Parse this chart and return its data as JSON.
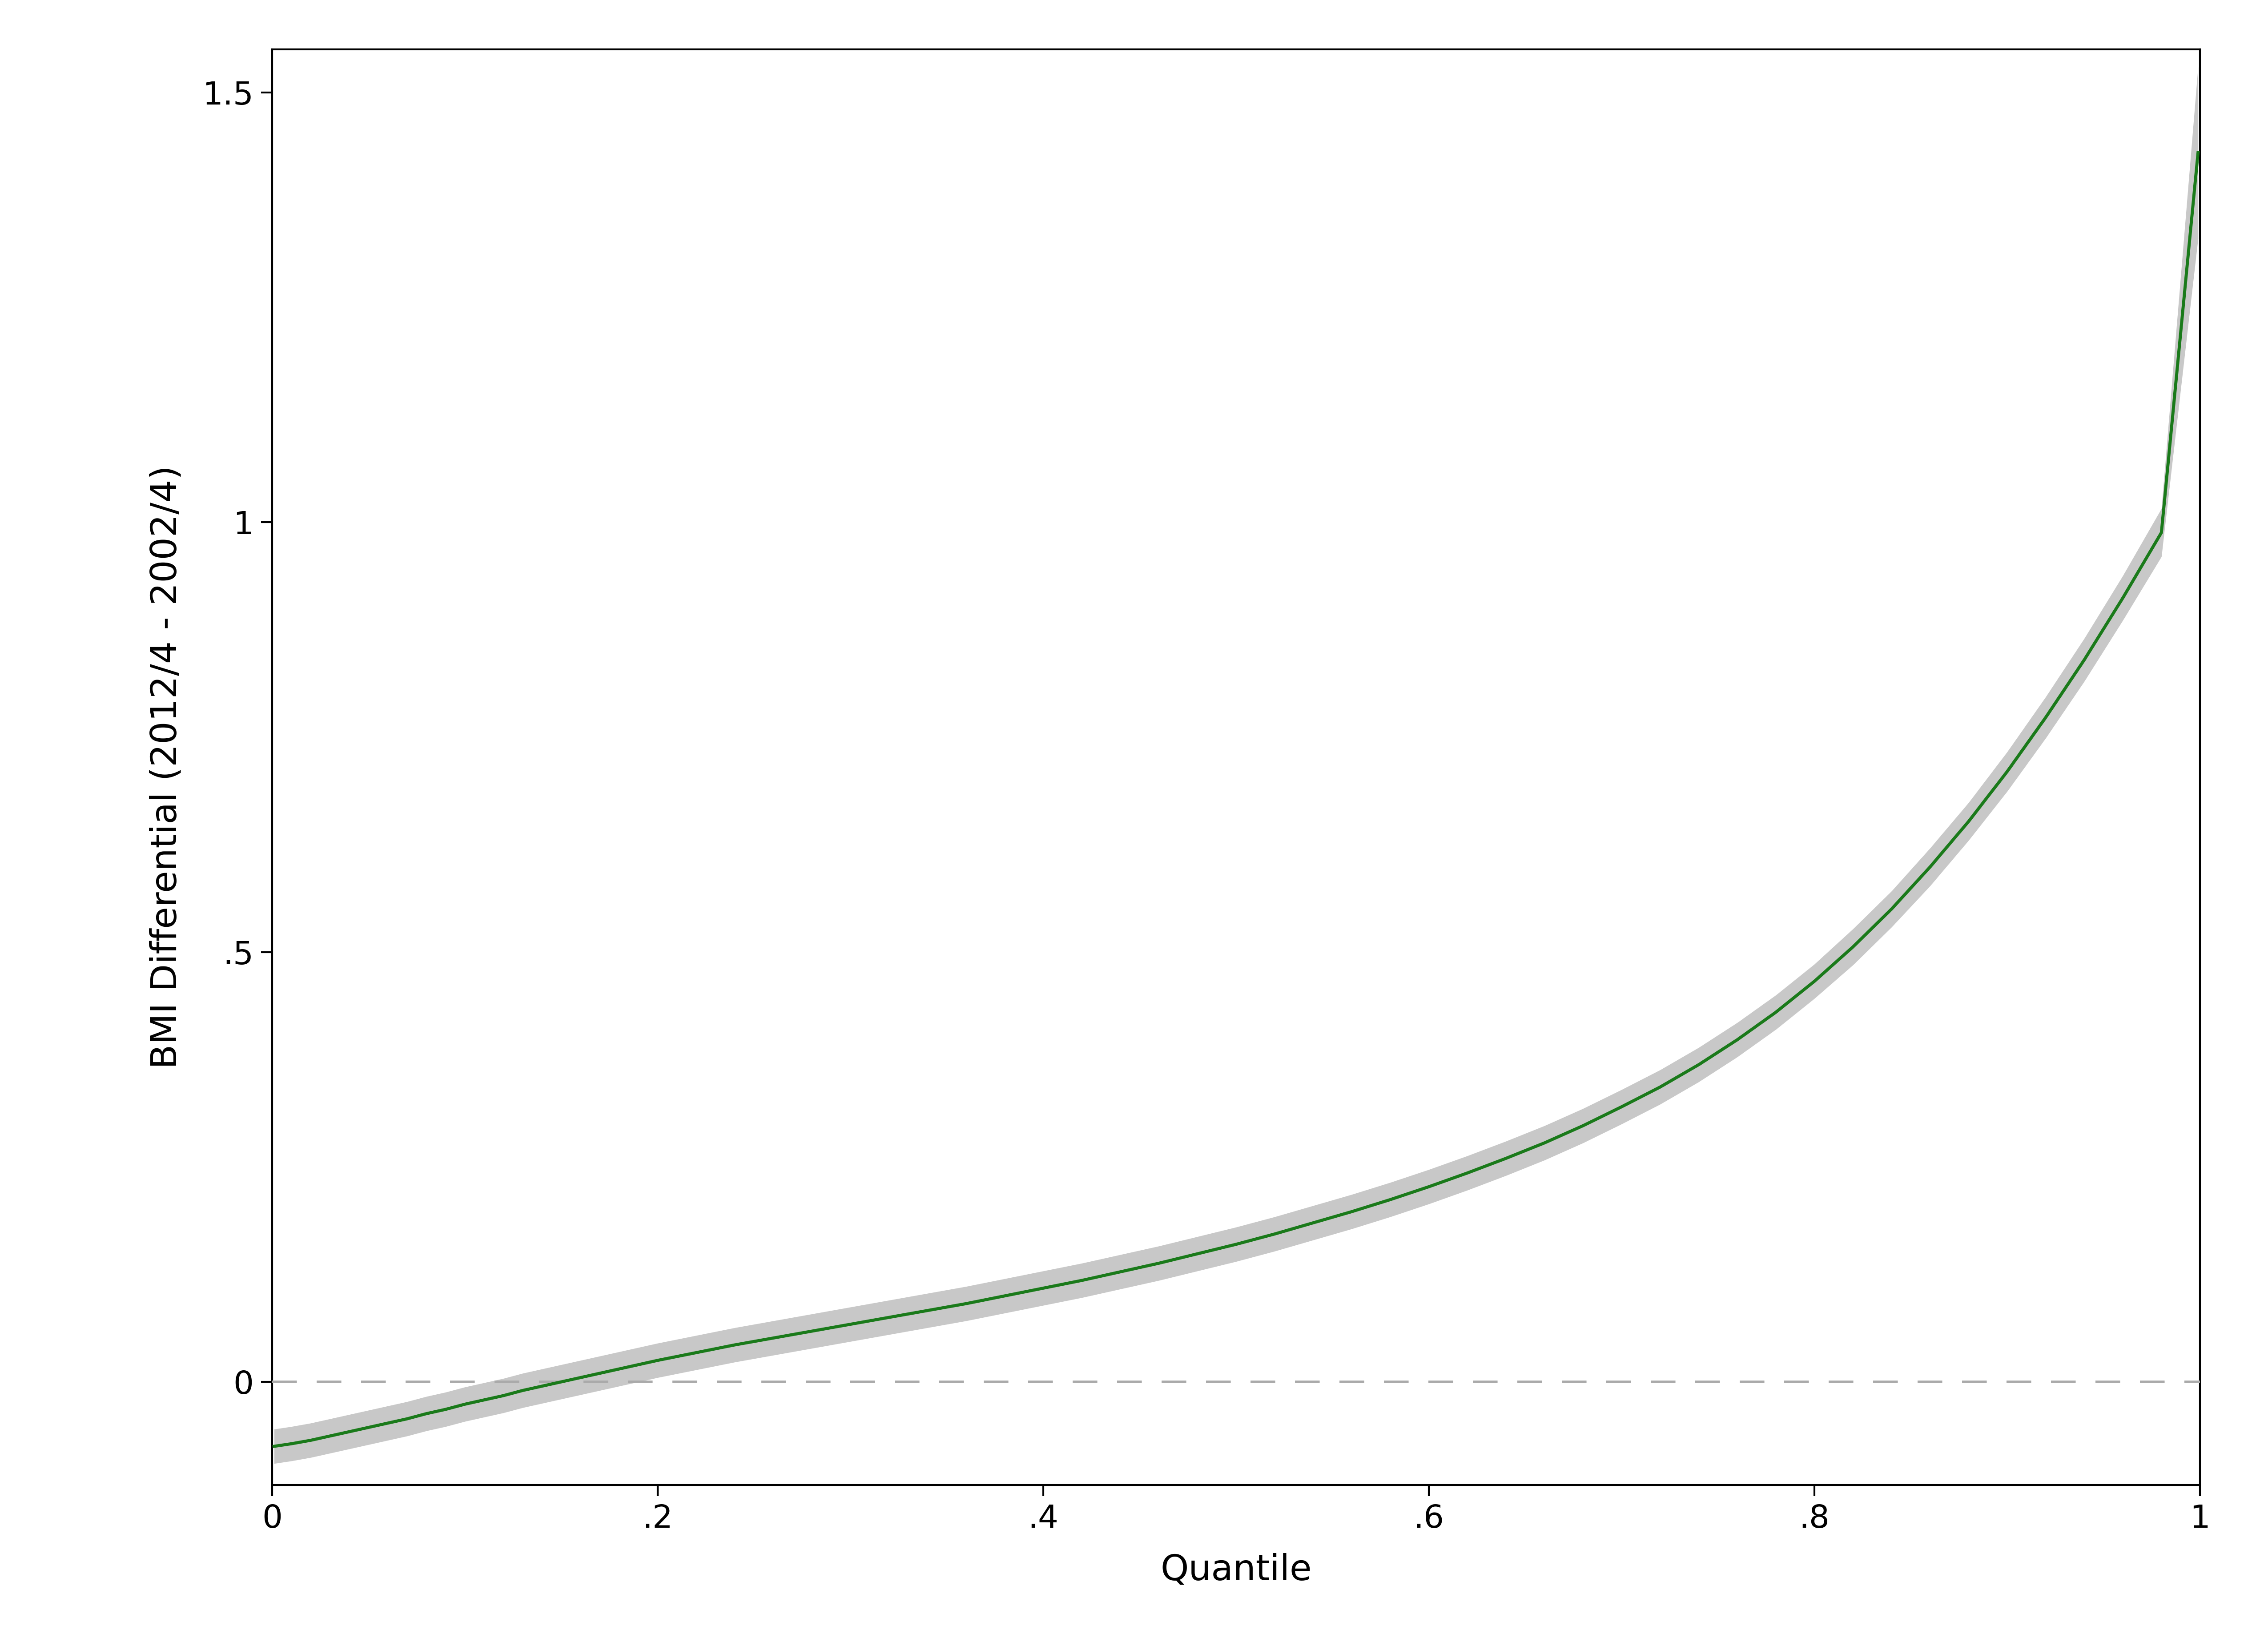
{
  "title": "",
  "xlabel": "Quantile",
  "ylabel": "BMI Differential (2012/4 - 2002/4)",
  "xlim": [
    0,
    1
  ],
  "ylim": [
    -0.12,
    1.55
  ],
  "xticks": [
    0,
    0.2,
    0.4,
    0.6,
    0.8,
    1.0
  ],
  "yticks": [
    0,
    0.5,
    1.0,
    1.5
  ],
  "xtick_labels": [
    "0",
    ".2",
    ".4",
    ".6",
    ".8",
    "1"
  ],
  "ytick_labels": [
    "0",
    ".5",
    "1",
    "1.5"
  ],
  "line_color": "#1a7a1a",
  "ci_color": "#c8c8c8",
  "hline_color": "#aaaaaa",
  "line_width": 5.0,
  "ci_alpha": 1.0,
  "background_color": "#ffffff",
  "spine_color": "#000000",
  "tick_fontsize": 52,
  "label_fontsize": 58,
  "curve_x": [
    0.001,
    0.01,
    0.02,
    0.03,
    0.04,
    0.05,
    0.06,
    0.07,
    0.08,
    0.09,
    0.1,
    0.11,
    0.12,
    0.13,
    0.14,
    0.15,
    0.16,
    0.17,
    0.18,
    0.19,
    0.2,
    0.22,
    0.24,
    0.26,
    0.28,
    0.3,
    0.32,
    0.34,
    0.36,
    0.38,
    0.4,
    0.42,
    0.44,
    0.46,
    0.48,
    0.5,
    0.52,
    0.54,
    0.56,
    0.58,
    0.6,
    0.62,
    0.64,
    0.66,
    0.68,
    0.7,
    0.72,
    0.74,
    0.76,
    0.78,
    0.8,
    0.82,
    0.84,
    0.86,
    0.88,
    0.9,
    0.92,
    0.94,
    0.96,
    0.98,
    0.999
  ],
  "curve_y": [
    -0.075,
    -0.072,
    -0.068,
    -0.063,
    -0.058,
    -0.053,
    -0.048,
    -0.043,
    -0.037,
    -0.032,
    -0.026,
    -0.021,
    -0.016,
    -0.01,
    -0.005,
    0.0,
    0.005,
    0.01,
    0.015,
    0.02,
    0.025,
    0.034,
    0.043,
    0.051,
    0.059,
    0.067,
    0.075,
    0.083,
    0.091,
    0.1,
    0.109,
    0.118,
    0.128,
    0.138,
    0.149,
    0.16,
    0.172,
    0.185,
    0.198,
    0.212,
    0.227,
    0.243,
    0.26,
    0.278,
    0.298,
    0.32,
    0.343,
    0.369,
    0.398,
    0.43,
    0.466,
    0.506,
    0.55,
    0.599,
    0.652,
    0.71,
    0.773,
    0.84,
    0.912,
    0.988,
    1.43
  ],
  "ci_lower": [
    -0.095,
    -0.092,
    -0.088,
    -0.083,
    -0.078,
    -0.073,
    -0.068,
    -0.063,
    -0.057,
    -0.052,
    -0.046,
    -0.041,
    -0.036,
    -0.03,
    -0.025,
    -0.02,
    -0.015,
    -0.01,
    -0.005,
    0.0,
    0.005,
    0.014,
    0.023,
    0.031,
    0.039,
    0.047,
    0.055,
    0.063,
    0.071,
    0.08,
    0.089,
    0.098,
    0.108,
    0.118,
    0.129,
    0.14,
    0.152,
    0.165,
    0.178,
    0.192,
    0.207,
    0.223,
    0.24,
    0.258,
    0.278,
    0.3,
    0.323,
    0.349,
    0.378,
    0.41,
    0.446,
    0.485,
    0.529,
    0.577,
    0.63,
    0.687,
    0.749,
    0.815,
    0.886,
    0.96,
    1.33
  ],
  "ci_upper": [
    -0.055,
    -0.052,
    -0.048,
    -0.043,
    -0.038,
    -0.033,
    -0.028,
    -0.023,
    -0.017,
    -0.012,
    -0.006,
    -0.001,
    0.004,
    0.01,
    0.015,
    0.02,
    0.025,
    0.03,
    0.035,
    0.04,
    0.045,
    0.054,
    0.063,
    0.071,
    0.079,
    0.087,
    0.095,
    0.103,
    0.111,
    0.12,
    0.129,
    0.138,
    0.148,
    0.158,
    0.169,
    0.18,
    0.192,
    0.205,
    0.218,
    0.232,
    0.247,
    0.263,
    0.28,
    0.298,
    0.318,
    0.34,
    0.363,
    0.389,
    0.418,
    0.45,
    0.486,
    0.527,
    0.571,
    0.621,
    0.674,
    0.733,
    0.797,
    0.865,
    0.938,
    1.016,
    1.53
  ]
}
